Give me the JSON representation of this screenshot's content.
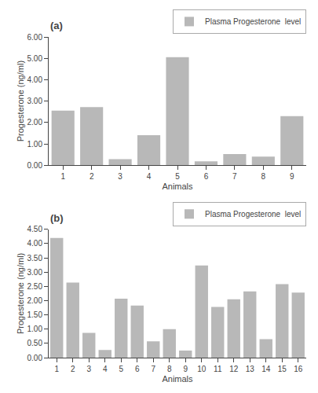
{
  "chart_data": [
    {
      "type": "bar",
      "title": "(a)",
      "categories": [
        "1",
        "2",
        "3",
        "4",
        "5",
        "6",
        "7",
        "8",
        "9"
      ],
      "values": [
        2.55,
        2.72,
        0.28,
        1.4,
        5.05,
        0.18,
        0.52,
        0.4,
        2.3
      ],
      "name": "Plasma Progesterone  level",
      "color": "#b8b8b8",
      "xlabel": "Animals",
      "ylabel": "Progesterone (ng/ml)",
      "ylim": [
        0,
        6.0
      ],
      "yticks": [
        {
          "value": 0,
          "label": "0.00"
        },
        {
          "value": 1,
          "label": "1.00"
        },
        {
          "value": 2,
          "label": "2.00"
        },
        {
          "value": 3,
          "label": "3.00"
        },
        {
          "value": 4,
          "label": "4.00"
        },
        {
          "value": 5,
          "label": "5.00"
        },
        {
          "value": 6,
          "label": "6.00"
        }
      ],
      "legend": "upper right",
      "grid": false
    },
    {
      "type": "bar",
      "title": "(b)",
      "categories": [
        "1",
        "2",
        "3",
        "4",
        "5",
        "6",
        "7",
        "8",
        "9",
        "10",
        "11",
        "12",
        "13",
        "14",
        "15",
        "16"
      ],
      "values": [
        4.2,
        2.63,
        0.87,
        0.27,
        2.07,
        1.83,
        0.57,
        1.0,
        0.25,
        3.23,
        1.78,
        2.05,
        2.32,
        0.65,
        2.58,
        2.28
      ],
      "name": "Plasma Progesterone  level",
      "color": "#b8b8b8",
      "xlabel": "Animals",
      "ylabel": "Progesterone (ng/ml)",
      "ylim": [
        0,
        4.5
      ],
      "yticks": [
        {
          "value": 0,
          "label": "0.00"
        },
        {
          "value": 0.5,
          "label": "0.50"
        },
        {
          "value": 1,
          "label": "1.00"
        },
        {
          "value": 1.5,
          "label": "1.50"
        },
        {
          "value": 2,
          "label": "2.00"
        },
        {
          "value": 2.5,
          "label": "2.50"
        },
        {
          "value": 3,
          "label": "3.00"
        },
        {
          "value": 3.5,
          "label": "3.50"
        },
        {
          "value": 4,
          "label": "4.00"
        },
        {
          "value": 4.5,
          "label": "4.50"
        }
      ],
      "legend": "upper right",
      "grid": false
    }
  ]
}
